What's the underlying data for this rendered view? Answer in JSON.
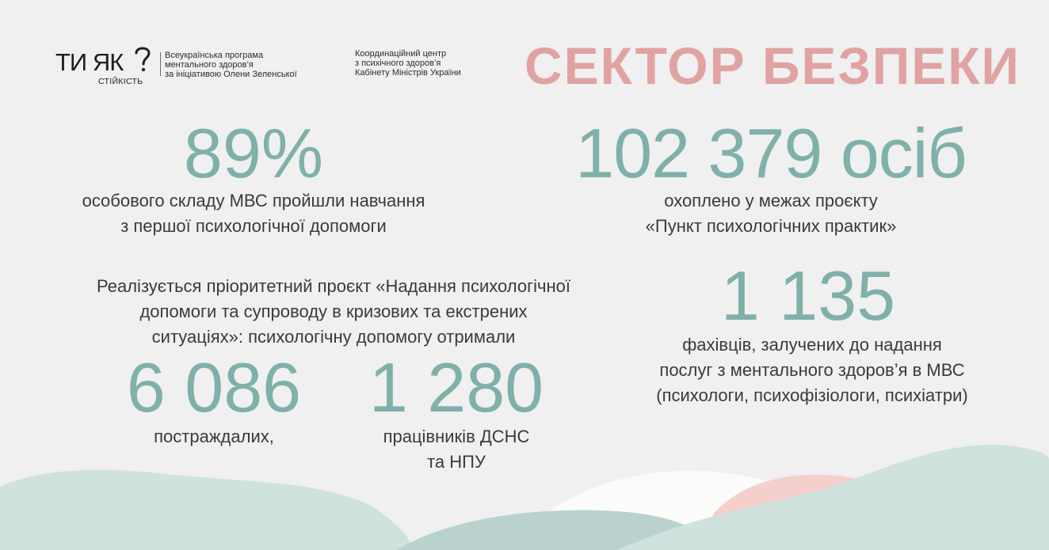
{
  "logo": {
    "brand": "ТИ ЯК",
    "brand_sub": "СТІЙКІСТЬ",
    "program_lines": [
      "Всеукраїнська програма",
      "ментального здоров’я",
      "за ініціативою Олени Зеленської"
    ]
  },
  "partner": {
    "lines": [
      "Координаційний центр",
      "з психічного здоров’я",
      "Кабінету Міністрів України"
    ]
  },
  "title": "СЕКТОР БЕЗПЕКИ",
  "stats": {
    "trained": {
      "value": "89%",
      "caption_lines": [
        "особового складу МВС пройшли навчання",
        "з першої психологічної допомоги"
      ]
    },
    "covered": {
      "value": "102 379 осіб",
      "caption_lines": [
        "охоплено у межах проєкту",
        "«Пункт психологічних практик»"
      ]
    },
    "project_text_lines": [
      "Реалізується пріоритетний проєкт «Надання психологічної",
      "допомоги та супроводу в кризових та екстрених",
      "ситуаціях»: психологічну допомогу отримали"
    ],
    "victims": {
      "value": "6 086",
      "caption_lines": [
        "постраждалих,"
      ]
    },
    "workers": {
      "value": "1 280",
      "caption_lines": [
        "працівників ДСНС",
        "та НПУ"
      ]
    },
    "specialists": {
      "value": "1 135",
      "caption_lines": [
        "фахівців, залучених до надання",
        "послуг з ментального здоров’я в МВС",
        "(психологи, психофізіологи, психіатри)"
      ]
    }
  },
  "colors": {
    "background": "#eff0ef",
    "numbers": "#7fb0aa",
    "title": "#e0a3a2",
    "wave_teal": "#cfe2dd",
    "wave_dark": "#b9d2cd",
    "wave_white": "#fbfbfa",
    "wave_pink": "#f5cfcc"
  }
}
